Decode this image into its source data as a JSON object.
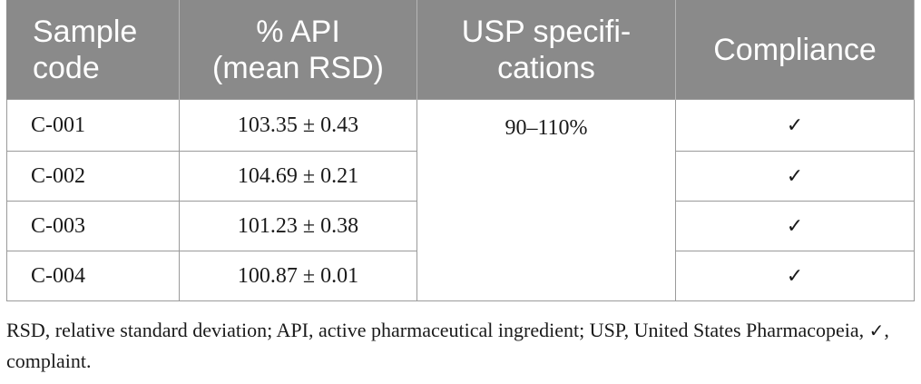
{
  "table": {
    "headers": [
      {
        "lines": [
          "Sample",
          "code"
        ]
      },
      {
        "lines": [
          "% API",
          "(mean RSD)"
        ]
      },
      {
        "lines": [
          "USP specifi-",
          "cations"
        ]
      },
      {
        "lines": [
          "Compliance"
        ]
      }
    ],
    "rows": [
      {
        "code": "C-001",
        "api": "103.35 ± 0.43",
        "compliance": "✓"
      },
      {
        "code": "C-002",
        "api": "104.69 ± 0.21",
        "compliance": "✓"
      },
      {
        "code": "C-003",
        "api": "101.23 ± 0.38",
        "compliance": "✓"
      },
      {
        "code": "C-004",
        "api": "100.87 ± 0.01",
        "compliance": "✓"
      }
    ],
    "usp_specification": "90–110%"
  },
  "footnote": {
    "part1": "RSD, relative standard deviation; API, active pharmaceutical ingredient; USP, United States Pharmacopeia, ",
    "check_symbol": "✓",
    "part2": ", complaint."
  }
}
